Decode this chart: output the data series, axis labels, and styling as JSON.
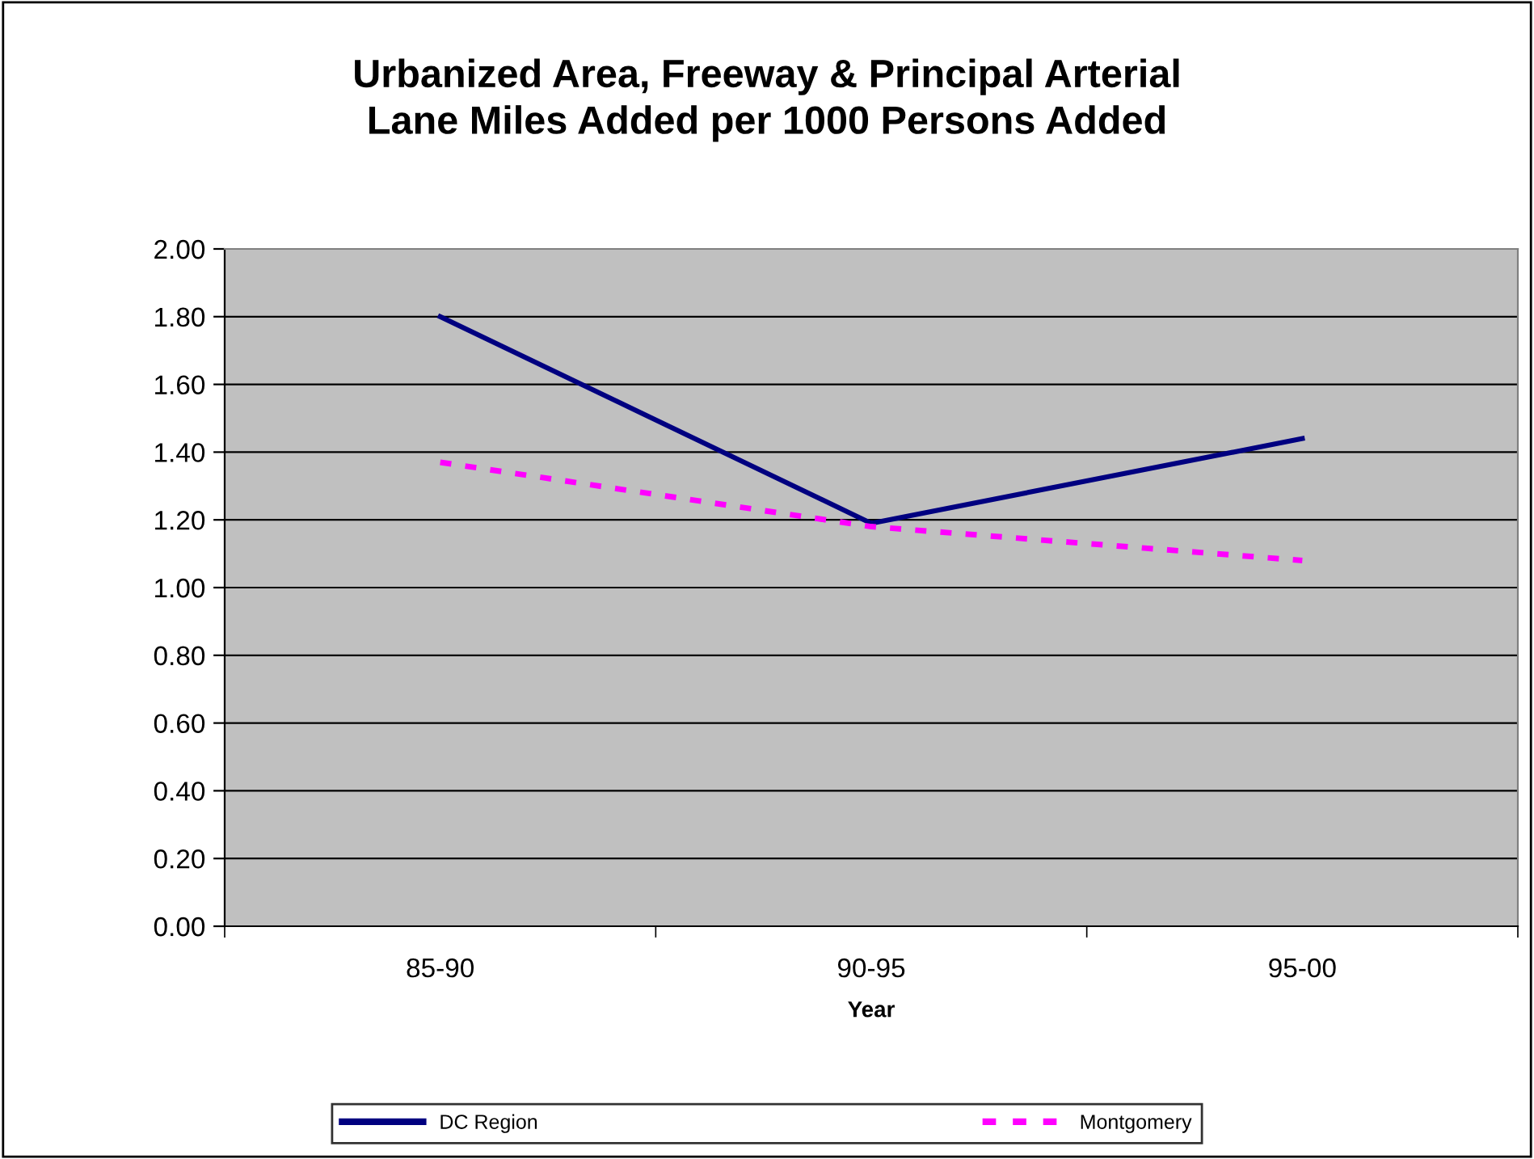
{
  "chart_data": {
    "type": "line",
    "title": "Urbanized Area, Freeway & Principal Arterial\nLane Miles Added per 1000 Persons Added",
    "xlabel": "Year",
    "categories": [
      "85-90",
      "90-95",
      "95-00"
    ],
    "series": [
      {
        "name": "DC Region",
        "color": "#000080",
        "values": [
          1.8,
          1.19,
          1.44
        ],
        "line_style": "solid"
      },
      {
        "name": "Montgomery",
        "color": "#ff00ff",
        "values": [
          1.37,
          1.18,
          1.08
        ],
        "line_style": "dashed"
      }
    ],
    "ylim": [
      0,
      2
    ],
    "yticks": [
      {
        "value": 0,
        "label": "0.00"
      },
      {
        "value": 0.2,
        "label": "0.20"
      },
      {
        "value": 0.4,
        "label": "0.40"
      },
      {
        "value": 0.6,
        "label": "0.60"
      },
      {
        "value": 0.8,
        "label": "0.80"
      },
      {
        "value": 1.0,
        "label": "1.00"
      },
      {
        "value": 1.2,
        "label": "1.20"
      },
      {
        "value": 1.4,
        "label": "1.40"
      },
      {
        "value": 1.6,
        "label": "1.60"
      },
      {
        "value": 1.8,
        "label": "1.80"
      },
      {
        "value": 2.0,
        "label": "2.00"
      }
    ],
    "grid": "y",
    "legend": "bottom",
    "marker": "none"
  }
}
